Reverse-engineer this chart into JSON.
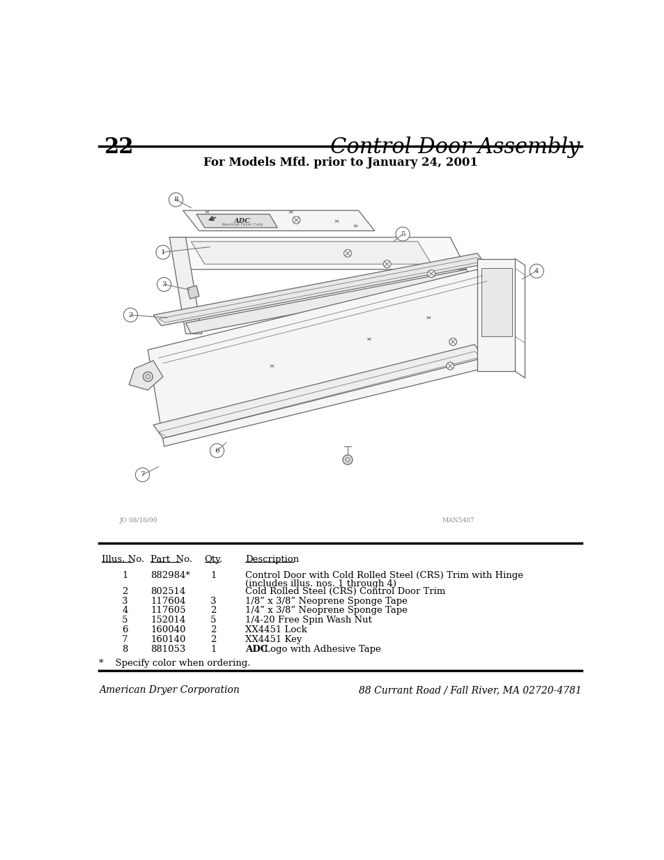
{
  "page_number": "22",
  "title": "Control Door Assembly",
  "subtitle": "For Models Mfd. prior to January 24, 2001",
  "diagram_notes_left": "JO 08/16/00",
  "diagram_notes_right": "MAN5407",
  "table_header": [
    "Illus. No.",
    "Part  No.",
    "Qty.",
    "Description"
  ],
  "table_rows": [
    [
      "1",
      "882984*",
      "1",
      "Control Door with Cold Rolled Steel (CRS) Trim with Hinge\n(includes illus. nos. 1 through 4)"
    ],
    [
      "2",
      "802514",
      "",
      "Cold Rolled Steel (CRS) Control Door Trim"
    ],
    [
      "3",
      "117604",
      "3",
      "1/8” x 3/8” Neoprene Sponge Tape"
    ],
    [
      "4",
      "117605",
      "2",
      "1/4” x 3/8” Neoprene Sponge Tape"
    ],
    [
      "5",
      "152014",
      "5",
      "1/4-20 Free Spin Wash Nut"
    ],
    [
      "6",
      "160040",
      "2",
      "XX4451 Lock"
    ],
    [
      "7",
      "160140",
      "2",
      "XX4451 Key"
    ],
    [
      "8",
      "881053",
      "1",
      "ADC Logo with Adhesive Tape"
    ]
  ],
  "footnote": "*    Specify color when ordering.",
  "footer_left": "American Dryer Corporation",
  "footer_right": "88 Currant Road / Fall River, MA 02720-4781",
  "bg_color": "#ffffff",
  "text_color": "#000000",
  "line_color": "#000000"
}
